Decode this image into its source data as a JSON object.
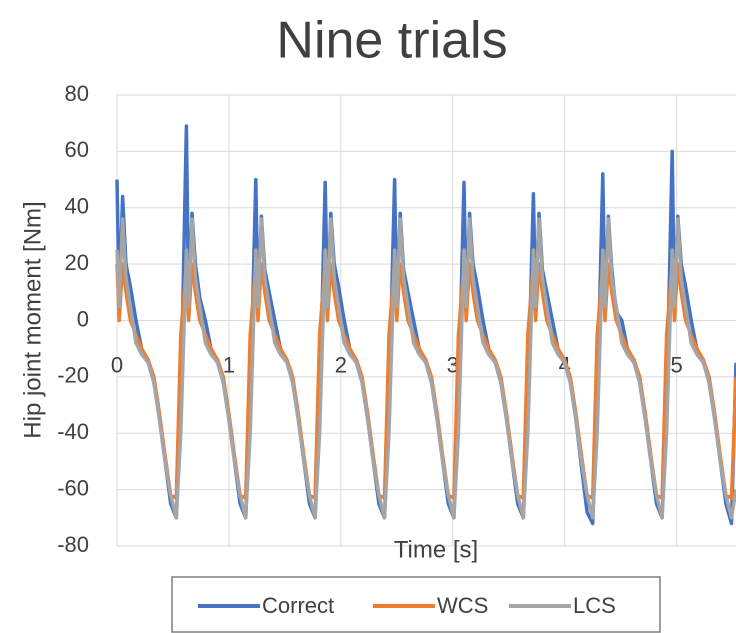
{
  "chart_data": {
    "type": "line",
    "title": "Nine trials",
    "x_label": "Time [s]",
    "y_label": "Hip joint moment [Nm]",
    "x": [
      0,
      0.02,
      0.05,
      0.08,
      0.12,
      0.17,
      0.22,
      0.28,
      0.33,
      0.38,
      0.43,
      0.48,
      0.53,
      0.57,
      0.62,
      0.64,
      0.67,
      0.7,
      0.74,
      0.79,
      0.84,
      0.9,
      0.95,
      1.0,
      1.05,
      1.1,
      1.15,
      1.19,
      1.24,
      1.26,
      1.29,
      1.32,
      1.36,
      1.41,
      1.46,
      1.52,
      1.57,
      1.62,
      1.67,
      1.72,
      1.77,
      1.81,
      1.86,
      1.88,
      1.91,
      1.94,
      1.98,
      2.03,
      2.08,
      2.14,
      2.19,
      2.24,
      2.29,
      2.34,
      2.39,
      2.43,
      2.48,
      2.5,
      2.53,
      2.56,
      2.6,
      2.65,
      2.7,
      2.76,
      2.81,
      2.86,
      2.91,
      2.96,
      3.01,
      3.05,
      3.1,
      3.12,
      3.15,
      3.18,
      3.22,
      3.27,
      3.32,
      3.38,
      3.43,
      3.48,
      3.53,
      3.58,
      3.63,
      3.67,
      3.72,
      3.74,
      3.77,
      3.8,
      3.84,
      3.89,
      3.94,
      4.0,
      4.05,
      4.1,
      4.15,
      4.2,
      4.25,
      4.29,
      4.34,
      4.36,
      4.39,
      4.42,
      4.46,
      4.51,
      4.56,
      4.62,
      4.67,
      4.72,
      4.77,
      4.82,
      4.87,
      4.91,
      4.96,
      4.98,
      5.01,
      5.04,
      5.08,
      5.13,
      5.18,
      5.24,
      5.29,
      5.34,
      5.39,
      5.44,
      5.49,
      5.53
    ],
    "series": [
      {
        "name": "Correct",
        "color": "#4472c4",
        "values": [
          50,
          5,
          44,
          20,
          12,
          0,
          -10,
          -15,
          -22,
          -35,
          -50,
          -65,
          -70,
          -30,
          69,
          5,
          38,
          20,
          8,
          0,
          -10,
          -15,
          -22,
          -35,
          -50,
          -65,
          -70,
          -30,
          50,
          5,
          37,
          18,
          10,
          0,
          -10,
          -15,
          -22,
          -35,
          -50,
          -65,
          -70,
          -30,
          49,
          5,
          38,
          20,
          12,
          0,
          -10,
          -15,
          -22,
          -35,
          -50,
          -65,
          -70,
          -30,
          50,
          5,
          38,
          18,
          10,
          0,
          -10,
          -15,
          -22,
          -35,
          -50,
          -65,
          -70,
          -30,
          49,
          5,
          38,
          20,
          12,
          0,
          -10,
          -15,
          -22,
          -35,
          -50,
          -65,
          -70,
          -30,
          45,
          5,
          38,
          18,
          10,
          0,
          -10,
          -15,
          -22,
          -35,
          -52,
          -68,
          -72,
          -30,
          52,
          5,
          37,
          18,
          3,
          0,
          -10,
          -15,
          -22,
          -35,
          -50,
          -65,
          -70,
          -30,
          60,
          5,
          37,
          20,
          12,
          0,
          -10,
          -15,
          -22,
          -35,
          -50,
          -65,
          -72,
          -15
        ]
      },
      {
        "name": "WCS",
        "color": "#ed7d31",
        "values": [
          20,
          0,
          20,
          10,
          0,
          -5,
          -10,
          -14,
          -20,
          -33,
          -48,
          -62,
          -63,
          -5,
          20,
          0,
          20,
          10,
          0,
          -5,
          -10,
          -14,
          -20,
          -33,
          -48,
          -62,
          -63,
          -5,
          20,
          0,
          20,
          10,
          0,
          -5,
          -10,
          -14,
          -20,
          -33,
          -48,
          -62,
          -63,
          -5,
          20,
          0,
          20,
          10,
          0,
          -5,
          -10,
          -14,
          -20,
          -33,
          -48,
          -62,
          -63,
          -5,
          20,
          0,
          20,
          10,
          0,
          -5,
          -10,
          -14,
          -20,
          -33,
          -48,
          -62,
          -63,
          -5,
          20,
          0,
          20,
          10,
          0,
          -5,
          -10,
          -14,
          -20,
          -33,
          -48,
          -62,
          -63,
          -5,
          20,
          0,
          20,
          10,
          0,
          -5,
          -10,
          -14,
          -20,
          -33,
          -48,
          -62,
          -63,
          -5,
          20,
          0,
          20,
          10,
          0,
          -5,
          -10,
          -14,
          -20,
          -33,
          -48,
          -62,
          -63,
          -5,
          20,
          0,
          20,
          10,
          0,
          -5,
          -10,
          -14,
          -20,
          -33,
          -48,
          -62,
          -63,
          -20
        ]
      },
      {
        "name": "LCS",
        "color": "#a5a5a5",
        "values": [
          25,
          5,
          36,
          15,
          5,
          -8,
          -12,
          -15,
          -22,
          -35,
          -50,
          -62,
          -70,
          -40,
          25,
          5,
          36,
          15,
          5,
          -8,
          -12,
          -15,
          -22,
          -35,
          -50,
          -62,
          -70,
          -40,
          25,
          5,
          36,
          15,
          5,
          -8,
          -12,
          -15,
          -22,
          -35,
          -50,
          -62,
          -70,
          -40,
          25,
          5,
          36,
          15,
          5,
          -8,
          -12,
          -15,
          -22,
          -35,
          -50,
          -62,
          -70,
          -40,
          25,
          5,
          36,
          15,
          5,
          -8,
          -12,
          -15,
          -22,
          -35,
          -50,
          -62,
          -70,
          -40,
          25,
          5,
          36,
          15,
          5,
          -8,
          -12,
          -15,
          -22,
          -35,
          -50,
          -62,
          -70,
          -40,
          25,
          5,
          36,
          15,
          5,
          -8,
          -12,
          -15,
          -22,
          -35,
          -50,
          -62,
          -70,
          -40,
          25,
          5,
          36,
          15,
          5,
          -8,
          -12,
          -15,
          -22,
          -35,
          -50,
          -62,
          -70,
          -40,
          25,
          5,
          36,
          15,
          5,
          -8,
          -12,
          -15,
          -22,
          -35,
          -50,
          -62,
          -70,
          -60
        ]
      }
    ],
    "xlim": [
      0,
      5.53
    ],
    "xticks": [
      0,
      1,
      2,
      3,
      4,
      5
    ],
    "ylim": [
      -80,
      80
    ],
    "yticks": [
      -80,
      -60,
      -40,
      -20,
      0,
      20,
      40,
      60,
      80
    ],
    "grid": true,
    "legend": "bottom"
  }
}
